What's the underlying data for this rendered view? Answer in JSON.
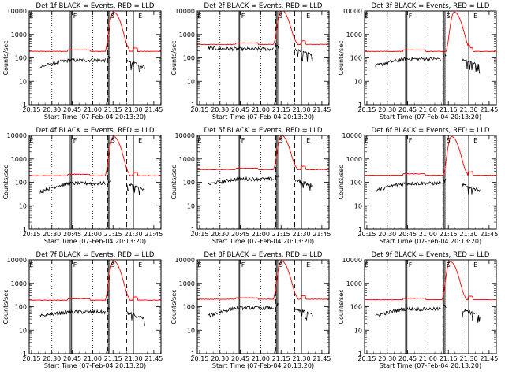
{
  "figure": {
    "common": {
      "xlabel": "Start Time (07-Feb-04 20:13:20)",
      "ylabel": "Counts/sec",
      "xticks": [
        "20:15",
        "20:30",
        "20:45",
        "21:00",
        "21:15",
        "21:30",
        "21:45"
      ],
      "yticks": [
        "1",
        "10",
        "100",
        "1000",
        "10000"
      ],
      "y_scale": "log",
      "ylim": [
        1,
        10000
      ],
      "xlim_minutes_after_20_13_20": [
        0,
        97
      ],
      "markers": [
        {
          "label": "E",
          "t_min": 1.7
        },
        {
          "label": "F",
          "t_min": 33.7
        },
        {
          "label": "S",
          "t_min": 61.7
        },
        {
          "label": "E",
          "t_min": 81.7
        }
      ],
      "dotted_lines_t_min": [
        16.7,
        46.7
      ],
      "solid_double_lines_t_min": [
        30.2,
        31.2,
        58.2,
        59.2
      ],
      "dashed_lines_t_min": [
        57.7,
        71.7
      ],
      "solid_line_t_min": 76.7,
      "series_colors": {
        "events": "#000000",
        "lld": "#ff0000"
      }
    }
  },
  "chart_data": [
    {
      "type": "line",
      "title": "Det 1f BLACK = Events, RED = LLD",
      "lld_base": 190,
      "lld_peak": 9000,
      "events_base": 80,
      "events_start": 40,
      "peak_t_min": 62
    },
    {
      "type": "line",
      "title": "Det 2f BLACK = Events, RED = LLD",
      "lld_base": 380,
      "lld_peak": 11000,
      "events_base": 240,
      "events_start": 260,
      "peak_t_min": 62
    },
    {
      "type": "line",
      "title": "Det 3f BLACK = Events, RED = LLD",
      "lld_base": 190,
      "lld_peak": 9000,
      "events_base": 90,
      "events_start": 45,
      "peak_t_min": 66
    },
    {
      "type": "line",
      "title": "Det 4f BLACK = Events, RED = LLD",
      "lld_base": 190,
      "lld_peak": 9000,
      "events_base": 90,
      "events_start": 40,
      "peak_t_min": 62
    },
    {
      "type": "line",
      "title": "Det 5f BLACK = Events, RED = LLD",
      "lld_base": 350,
      "lld_peak": 10000,
      "events_base": 140,
      "events_start": 80,
      "peak_t_min": 62
    },
    {
      "type": "line",
      "title": "Det 6f BLACK = Events, RED = LLD",
      "lld_base": 200,
      "lld_peak": 9000,
      "events_base": 90,
      "events_start": 45,
      "peak_t_min": 64
    },
    {
      "type": "line",
      "title": "Det 7f BLACK = Events, RED = LLD",
      "lld_base": 190,
      "lld_peak": 9000,
      "events_base": 60,
      "events_start": 40,
      "peak_t_min": 62
    },
    {
      "type": "line",
      "title": "Det 8f BLACK = Events, RED = LLD",
      "lld_base": 210,
      "lld_peak": 9000,
      "events_base": 90,
      "events_start": 40,
      "peak_t_min": 62
    },
    {
      "type": "line",
      "title": "Det 9f BLACK = Events, RED = LLD",
      "lld_base": 200,
      "lld_peak": 8500,
      "events_base": 80,
      "events_start": 40,
      "peak_t_min": 63
    }
  ]
}
